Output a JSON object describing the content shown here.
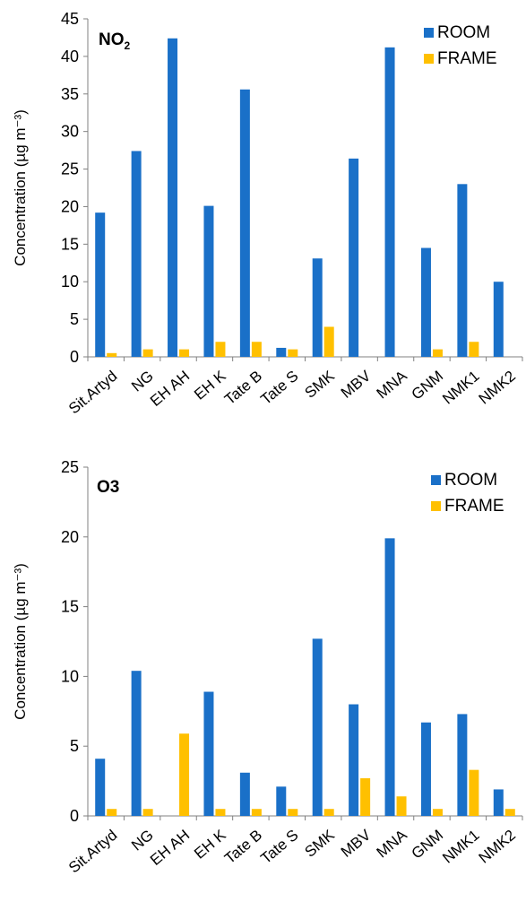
{
  "colors": {
    "room": "#1a70c8",
    "frame": "#ffc000",
    "axis": "#808080"
  },
  "chart_data": [
    {
      "type": "bar",
      "title_main": "NO",
      "title_sub": "2",
      "ylabel": "Concentration (µg m⁻³)",
      "ylim": [
        0,
        45
      ],
      "yticks": [
        0,
        5,
        10,
        15,
        20,
        25,
        30,
        35,
        40,
        45
      ],
      "grid": false,
      "legend": "top-right",
      "categories": [
        "Sit.Artyd",
        "NG",
        "EH AH",
        "EH K",
        "Tate B",
        "Tate S",
        "SMK",
        "MBV",
        "MNA",
        "GNM",
        "NMK1",
        "NMK2"
      ],
      "series": [
        {
          "name": "ROOM",
          "values": [
            19.2,
            27.4,
            42.4,
            20.1,
            35.6,
            1.2,
            13.1,
            26.4,
            41.2,
            14.5,
            23.0,
            10.0
          ]
        },
        {
          "name": "FRAME",
          "values": [
            0.5,
            1.0,
            1.0,
            2.0,
            2.0,
            1.0,
            4.0,
            0.0,
            0.0,
            1.0,
            2.0,
            0.0
          ]
        }
      ]
    },
    {
      "type": "bar",
      "title_main": "O3",
      "title_sub": "",
      "ylabel": "Concentration (µg m⁻³)",
      "ylim": [
        0,
        25
      ],
      "yticks": [
        0,
        5,
        10,
        15,
        20,
        25
      ],
      "grid": false,
      "legend": "top-right",
      "categories": [
        "Sit.Artyd",
        "NG",
        "EH AH",
        "EH K",
        "Tate B",
        "Tate S",
        "SMK",
        "MBV",
        "MNA",
        "GNM",
        "NMK1",
        "NMK2"
      ],
      "series": [
        {
          "name": "ROOM",
          "values": [
            4.1,
            10.4,
            0.0,
            8.9,
            3.1,
            2.1,
            12.7,
            8.0,
            19.9,
            6.7,
            7.3,
            1.9
          ]
        },
        {
          "name": "FRAME",
          "values": [
            0.5,
            0.5,
            5.9,
            0.5,
            0.5,
            0.5,
            0.5,
            2.7,
            1.4,
            0.5,
            3.3,
            0.5
          ]
        }
      ]
    }
  ]
}
